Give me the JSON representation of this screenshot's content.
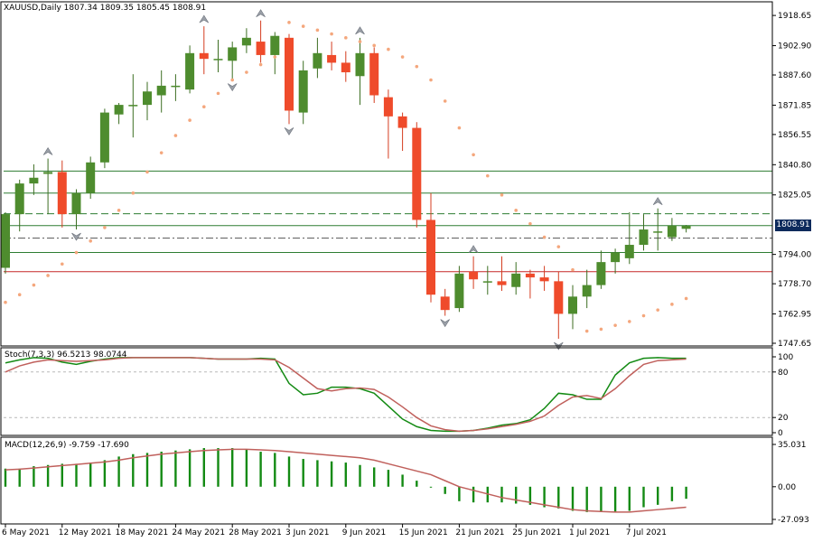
{
  "chart_data": [
    {
      "type": "candlestick",
      "symbol": "XAUUSD,Daily",
      "ohlc_header": "1807.34 1809.35 1805.45 1808.91",
      "last_price": "1808.91",
      "ylim": [
        1747.65,
        1922
      ],
      "yticks": [
        "1918.65",
        "1902.90",
        "1887.60",
        "1871.85",
        "1856.55",
        "1840.80",
        "1825.05",
        "1794.00",
        "1778.70",
        "1762.95",
        "1747.65"
      ],
      "xticks": [
        {
          "index": 0,
          "label": "6 May 2021"
        },
        {
          "index": 4,
          "label": "12 May 2021"
        },
        {
          "index": 8,
          "label": "18 May 2021"
        },
        {
          "index": 12,
          "label": "24 May 2021"
        },
        {
          "index": 16,
          "label": "28 May 2021"
        },
        {
          "index": 20,
          "label": "3 Jun 2021"
        },
        {
          "index": 24,
          "label": "9 Jun 2021"
        },
        {
          "index": 28,
          "label": "15 Jun 2021"
        },
        {
          "index": 32,
          "label": "21 Jun 2021"
        },
        {
          "index": 36,
          "label": "25 Jun 2021"
        },
        {
          "index": 40,
          "label": "1 Jul 2021"
        },
        {
          "index": 44,
          "label": "7 Jul 2021"
        }
      ],
      "candles": [
        {
          "o": 1787,
          "h": 1816,
          "l": 1784,
          "c": 1815
        },
        {
          "o": 1815,
          "h": 1833,
          "l": 1806,
          "c": 1831
        },
        {
          "o": 1831,
          "h": 1841,
          "l": 1825,
          "c": 1834
        },
        {
          "o": 1836,
          "h": 1844,
          "l": 1815,
          "c": 1837
        },
        {
          "o": 1837,
          "h": 1843,
          "l": 1808,
          "c": 1815
        },
        {
          "o": 1815,
          "h": 1828,
          "l": 1807,
          "c": 1826
        },
        {
          "o": 1826,
          "h": 1845,
          "l": 1823,
          "c": 1842
        },
        {
          "o": 1842,
          "h": 1870,
          "l": 1839,
          "c": 1868
        },
        {
          "o": 1867,
          "h": 1873,
          "l": 1862,
          "c": 1872
        },
        {
          "o": 1872,
          "h": 1888,
          "l": 1855,
          "c": 1872
        },
        {
          "o": 1872,
          "h": 1884,
          "l": 1864,
          "c": 1879
        },
        {
          "o": 1877,
          "h": 1890,
          "l": 1868,
          "c": 1882
        },
        {
          "o": 1882,
          "h": 1888,
          "l": 1874,
          "c": 1882
        },
        {
          "o": 1880,
          "h": 1903,
          "l": 1878,
          "c": 1899
        },
        {
          "o": 1899,
          "h": 1913,
          "l": 1888,
          "c": 1896
        },
        {
          "o": 1896,
          "h": 1906,
          "l": 1889,
          "c": 1896
        },
        {
          "o": 1895,
          "h": 1905,
          "l": 1885,
          "c": 1902
        },
        {
          "o": 1903,
          "h": 1912,
          "l": 1899,
          "c": 1907
        },
        {
          "o": 1905,
          "h": 1916,
          "l": 1894,
          "c": 1898
        },
        {
          "o": 1898,
          "h": 1910,
          "l": 1888,
          "c": 1908
        },
        {
          "o": 1907,
          "h": 1909,
          "l": 1862,
          "c": 1869
        },
        {
          "o": 1868,
          "h": 1895,
          "l": 1862,
          "c": 1890
        },
        {
          "o": 1891,
          "h": 1907,
          "l": 1886,
          "c": 1899
        },
        {
          "o": 1898,
          "h": 1905,
          "l": 1890,
          "c": 1894
        },
        {
          "o": 1894,
          "h": 1900,
          "l": 1884,
          "c": 1889
        },
        {
          "o": 1887,
          "h": 1907,
          "l": 1872,
          "c": 1899
        },
        {
          "o": 1899,
          "h": 1902,
          "l": 1873,
          "c": 1877
        },
        {
          "o": 1876,
          "h": 1880,
          "l": 1844,
          "c": 1866
        },
        {
          "o": 1866,
          "h": 1868,
          "l": 1848,
          "c": 1860
        },
        {
          "o": 1860,
          "h": 1863,
          "l": 1808,
          "c": 1812
        },
        {
          "o": 1812,
          "h": 1826,
          "l": 1769,
          "c": 1773
        },
        {
          "o": 1772,
          "h": 1776,
          "l": 1762,
          "c": 1765
        },
        {
          "o": 1766,
          "h": 1788,
          "l": 1764,
          "c": 1784
        },
        {
          "o": 1785,
          "h": 1793,
          "l": 1776,
          "c": 1781
        },
        {
          "o": 1780,
          "h": 1788,
          "l": 1773,
          "c": 1780
        },
        {
          "o": 1780,
          "h": 1793,
          "l": 1775,
          "c": 1778
        },
        {
          "o": 1777,
          "h": 1790,
          "l": 1773,
          "c": 1784
        },
        {
          "o": 1784,
          "h": 1786,
          "l": 1771,
          "c": 1782
        },
        {
          "o": 1782,
          "h": 1788,
          "l": 1775,
          "c": 1780
        },
        {
          "o": 1780,
          "h": 1785,
          "l": 1750,
          "c": 1763
        },
        {
          "o": 1763,
          "h": 1778,
          "l": 1755,
          "c": 1772
        },
        {
          "o": 1772,
          "h": 1786,
          "l": 1766,
          "c": 1778
        },
        {
          "o": 1778,
          "h": 1796,
          "l": 1776,
          "c": 1790
        },
        {
          "o": 1790,
          "h": 1797,
          "l": 1784,
          "c": 1795
        },
        {
          "o": 1792,
          "h": 1816,
          "l": 1789,
          "c": 1799
        },
        {
          "o": 1799,
          "h": 1815,
          "l": 1796,
          "c": 1807
        },
        {
          "o": 1806,
          "h": 1818,
          "l": 1796,
          "c": 1806
        },
        {
          "o": 1803,
          "h": 1813,
          "l": 1801,
          "c": 1809
        },
        {
          "o": 1807.34,
          "h": 1809.35,
          "l": 1805.45,
          "c": 1808.91
        }
      ],
      "parabolic_sar": [
        1769,
        1773,
        1778,
        1783,
        1789,
        1795,
        1801,
        1808,
        1817,
        1826,
        1837,
        1847,
        1856,
        1864,
        1871,
        1878,
        1885,
        1889,
        1893,
        1897,
        1915,
        1913,
        1911,
        1909,
        1907,
        1905,
        1903,
        1901,
        1897,
        1892,
        1885,
        1874,
        1860,
        1846,
        1835,
        1825,
        1817,
        1810,
        1803,
        1798,
        1786,
        1754,
        1755,
        1757,
        1759,
        1762,
        1765,
        1768,
        1771
      ],
      "horizontal_lines": [
        {
          "price": 1837.5,
          "style": "solid",
          "color": "#2e7d32"
        },
        {
          "price": 1826.0,
          "style": "solid",
          "color": "#2e7d32"
        },
        {
          "price": 1815.2,
          "style": "dashed",
          "color": "#2e7d32"
        },
        {
          "price": 1809.0,
          "style": "solid",
          "color": "#2e7d32"
        },
        {
          "price": 1802.5,
          "style": "dashdot",
          "color": "#555555"
        },
        {
          "price": 1795.0,
          "style": "solid",
          "color": "#2e7d32"
        },
        {
          "price": 1785.0,
          "style": "solid",
          "color": "#c62828"
        }
      ],
      "colors": {
        "bull": "#4e8c2e",
        "bear": "#ef4b2b",
        "sar": "#f4a77d",
        "fractal": "#9ba0a8"
      }
    },
    {
      "type": "line",
      "title": "Stoch(7,3,3) 96.5213 98.0744",
      "ylim": [
        0,
        100
      ],
      "yticks": [
        "100",
        "80",
        "20",
        "0"
      ],
      "levels": [
        80,
        20
      ],
      "series": [
        {
          "name": "main",
          "color": "#138a13",
          "values": [
            92,
            96,
            99,
            98,
            93,
            90,
            94,
            97,
            99,
            99,
            99,
            99,
            99,
            99,
            98,
            97,
            97,
            97,
            98,
            97,
            65,
            50,
            52,
            60,
            60,
            58,
            52,
            35,
            18,
            8,
            3,
            2,
            2,
            3,
            6,
            10,
            12,
            17,
            32,
            52,
            50,
            44,
            44,
            76,
            92,
            98,
            99,
            98,
            98
          ]
        },
        {
          "name": "signal",
          "color": "#c0605c",
          "values": [
            80,
            88,
            93,
            96,
            95,
            94,
            95,
            96,
            98,
            99,
            99,
            99,
            99,
            99,
            98,
            97,
            97,
            97,
            97,
            96,
            86,
            72,
            58,
            55,
            58,
            59,
            57,
            47,
            34,
            20,
            9,
            4,
            2,
            3,
            5,
            8,
            11,
            15,
            22,
            36,
            47,
            49,
            45,
            58,
            75,
            90,
            95,
            96,
            97
          ]
        }
      ]
    },
    {
      "type": "bar",
      "title": "MACD(12,26,9) -9.759 -17.690",
      "ylim": [
        -27.093,
        35.031
      ],
      "yticks": [
        "35.031",
        "0.00",
        "-27.093"
      ],
      "histogram": [
        15,
        15,
        17,
        18,
        19,
        19,
        20,
        22,
        25,
        27,
        28,
        29,
        30,
        31,
        32,
        32,
        32,
        31,
        29,
        28,
        25,
        23,
        22,
        21,
        20,
        18,
        16,
        14,
        10,
        5,
        0,
        -6,
        -12,
        -13,
        -13,
        -13,
        -14,
        -15,
        -17,
        -18,
        -20,
        -21,
        -21,
        -21,
        -20,
        -17,
        -15,
        -12,
        -10
      ],
      "signal": [
        14,
        14.5,
        15.5,
        16.5,
        17.5,
        18.5,
        19.5,
        20.5,
        22,
        24,
        25.5,
        27,
        28,
        29,
        30,
        30.5,
        31,
        31,
        30.5,
        30,
        29,
        28,
        27,
        26,
        25,
        24,
        22,
        19,
        16,
        13,
        10,
        5,
        0,
        -3,
        -6,
        -9,
        -11,
        -13,
        -15,
        -17,
        -19,
        -20,
        -20.5,
        -21,
        -21,
        -20,
        -19,
        -18,
        -17
      ],
      "colors": {
        "histogram": "#138a13",
        "signal": "#c0605c"
      }
    }
  ]
}
